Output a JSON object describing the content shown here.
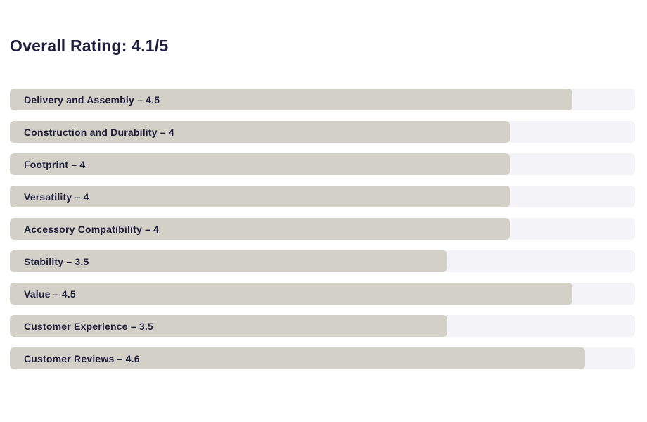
{
  "page": {
    "title": "Overall Rating: 4.1/5"
  },
  "colors": {
    "bar_fill": "#d3d0c8",
    "bar_track": "#f4f4f8",
    "text": "#1e1e3c",
    "background": "#ffffff"
  },
  "chart_data": {
    "type": "bar",
    "orientation": "horizontal",
    "title": "Overall Rating: 4.1/5",
    "value_range": [
      0,
      5
    ],
    "grid": false,
    "legend": false,
    "categories": [
      "Delivery and Assembly",
      "Construction and Durability",
      "Footprint",
      "Versatility",
      "Accessory Compatibility",
      "Stability",
      "Value",
      "Customer Experience",
      "Customer Reviews"
    ],
    "values": [
      4.5,
      4,
      4,
      4,
      4,
      3.5,
      4.5,
      3.5,
      4.6
    ],
    "labels": [
      "Delivery and Assembly – 4.5",
      "Construction and Durability – 4",
      "Footprint – 4",
      "Versatility – 4",
      "Accessory Compatibility – 4",
      "Stability – 3.5",
      "Value – 4.5",
      "Customer Experience – 3.5",
      "Customer Reviews – 4.6"
    ]
  }
}
